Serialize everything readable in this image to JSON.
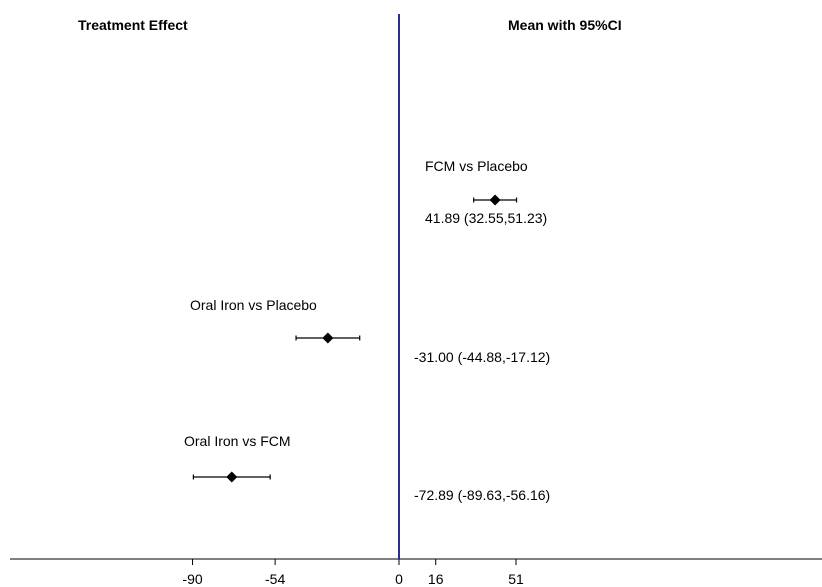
{
  "headers": {
    "left": "Treatment Effect",
    "right": "Mean with 95%CI"
  },
  "chart_data": {
    "type": "forest",
    "title": "",
    "xlabel": "",
    "ylabel": "",
    "reference_line": 0,
    "reference_color": "#2b2f8f",
    "xticks": [
      -90,
      -54,
      0,
      16,
      51
    ],
    "rows": [
      {
        "label": "FCM vs Placebo",
        "mean": 41.89,
        "lower": 32.55,
        "upper": 51.23,
        "ci_text": "41.89 (32.55,51.23)"
      },
      {
        "label": "Oral Iron vs Placebo",
        "mean": -31.0,
        "lower": -44.88,
        "upper": -17.12,
        "ci_text": "-31.00 (-44.88,-17.12)"
      },
      {
        "label": "Oral Iron vs FCM",
        "mean": -72.89,
        "lower": -89.63,
        "upper": -56.16,
        "ci_text": "-72.89 (-89.63,-56.16)"
      }
    ]
  }
}
